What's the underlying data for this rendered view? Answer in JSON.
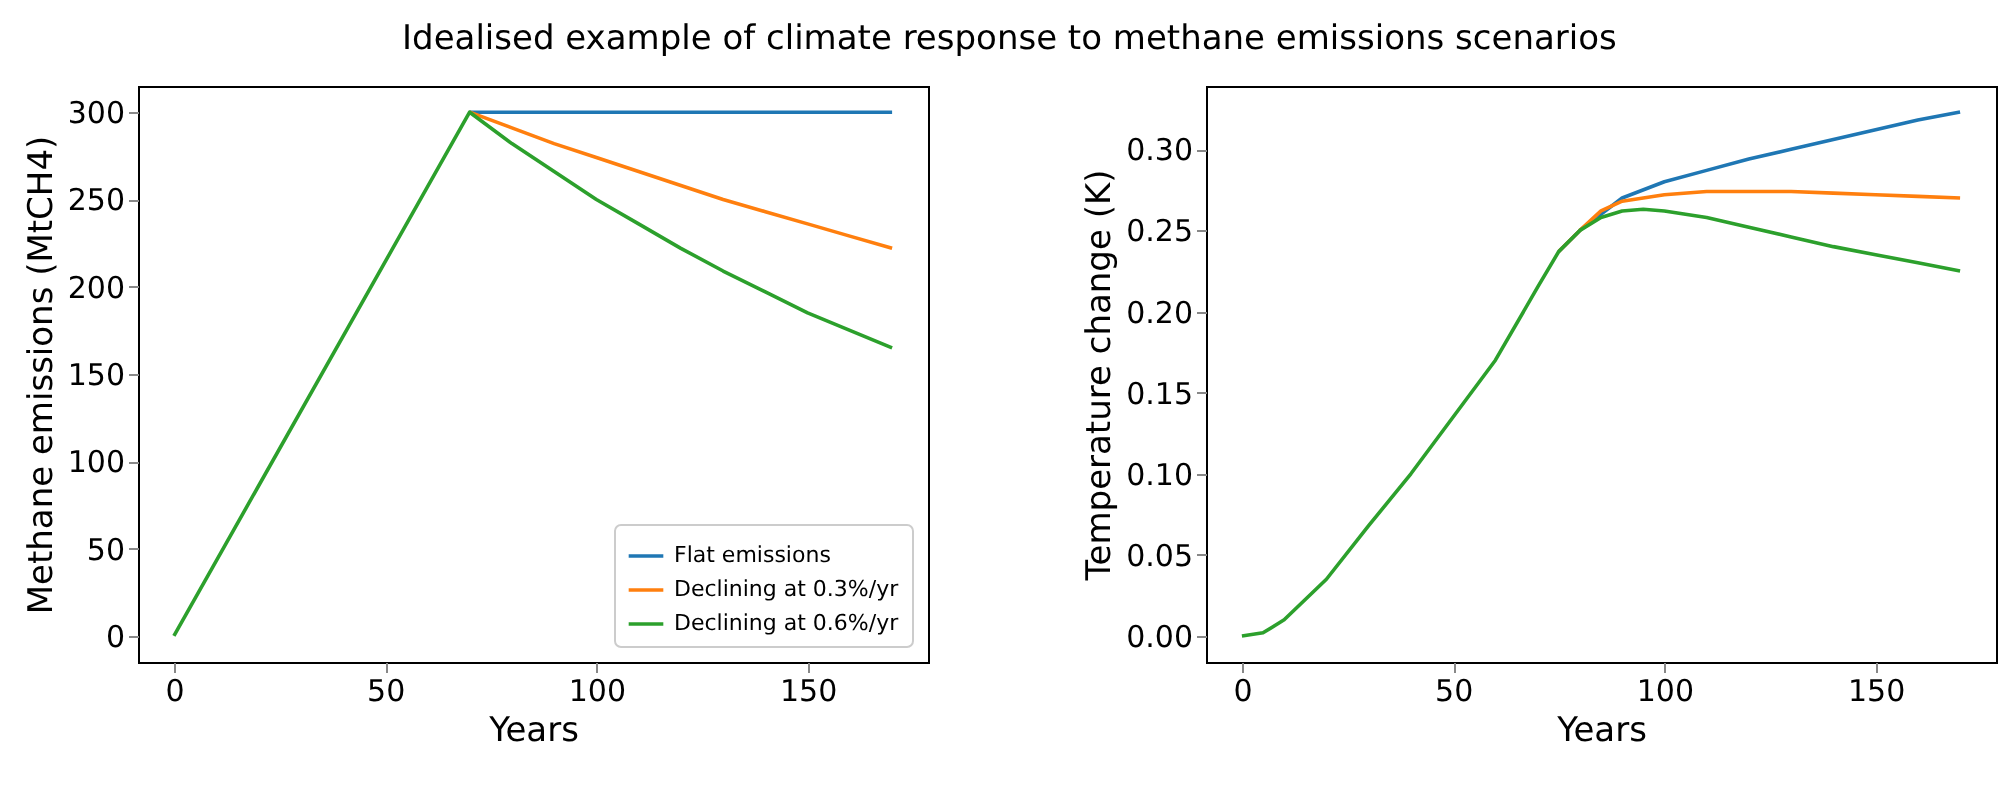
{
  "chart_data": [
    {
      "type": "line",
      "title": "Idealised example of climate response to methane emissions scenarios",
      "xlabel": "Years",
      "ylabel": "Methane emissions (MtCH4)",
      "xlim": [
        -8.5,
        178.5
      ],
      "ylim": [
        -15,
        315
      ],
      "xticks": [
        0,
        50,
        100,
        150
      ],
      "yticks": [
        0,
        50,
        100,
        150,
        200,
        250,
        300
      ],
      "grid": false,
      "legend": "bottom right",
      "series": [
        {
          "name": "Flat emissions",
          "color": "#1f77b4",
          "x": [
            70,
            170
          ],
          "values": [
            300,
            300
          ]
        },
        {
          "name": "Declining at 0.3%/yr",
          "color": "#ff7f0e",
          "x": [
            70,
            80,
            90,
            100,
            110,
            120,
            130,
            140,
            150,
            160,
            170
          ],
          "values": [
            300,
            291,
            282,
            274,
            266,
            258,
            250,
            243,
            236,
            229,
            222
          ]
        },
        {
          "name": "Declining at 0.6%/yr",
          "color": "#2ca02c",
          "x": [
            0,
            70,
            80,
            90,
            100,
            110,
            120,
            130,
            140,
            150,
            160,
            170
          ],
          "values": [
            0,
            300,
            282,
            266,
            250,
            236,
            222,
            209,
            197,
            185,
            175,
            165
          ]
        }
      ]
    },
    {
      "type": "line",
      "xlabel": "Years",
      "ylabel": "Temperature change (K)",
      "xlim": [
        -8.5,
        178.5
      ],
      "ylim": [
        -0.016,
        0.339
      ],
      "xticks": [
        0,
        50,
        100,
        150
      ],
      "yticks": [
        {
          "value": 0,
          "label": "0.00"
        },
        {
          "value": 0.05,
          "label": "0.05"
        },
        {
          "value": 0.1,
          "label": "0.10"
        },
        {
          "value": 0.15,
          "label": "0.15"
        },
        {
          "value": 0.2,
          "label": "0.20"
        },
        {
          "value": 0.25,
          "label": "0.25"
        },
        {
          "value": 0.3,
          "label": "0.30"
        }
      ],
      "grid": false,
      "legend": false,
      "series": [
        {
          "color": "#1f77b4",
          "x": [
            75,
            80,
            90,
            100,
            110,
            120,
            130,
            140,
            150,
            160,
            170
          ],
          "values": [
            0.237,
            0.25,
            0.27,
            0.28,
            0.287,
            0.294,
            0.3,
            0.306,
            0.312,
            0.318,
            0.323
          ]
        },
        {
          "color": "#ff7f0e",
          "x": [
            75,
            80,
            85,
            90,
            100,
            110,
            120,
            130,
            140,
            150,
            160,
            170
          ],
          "values": [
            0.237,
            0.25,
            0.262,
            0.268,
            0.272,
            0.274,
            0.274,
            0.274,
            0.273,
            0.272,
            0.271,
            0.27
          ]
        },
        {
          "color": "#2ca02c",
          "x": [
            0,
            5,
            10,
            20,
            30,
            40,
            50,
            60,
            70,
            75,
            80,
            85,
            90,
            95,
            100,
            110,
            120,
            130,
            140,
            150,
            160,
            170
          ],
          "values": [
            0,
            0.002,
            0.01,
            0.035,
            0.068,
            0.1,
            0.135,
            0.17,
            0.215,
            0.237,
            0.25,
            0.258,
            0.262,
            0.263,
            0.262,
            0.258,
            0.252,
            0.246,
            0.24,
            0.235,
            0.23,
            0.225
          ]
        }
      ]
    }
  ]
}
